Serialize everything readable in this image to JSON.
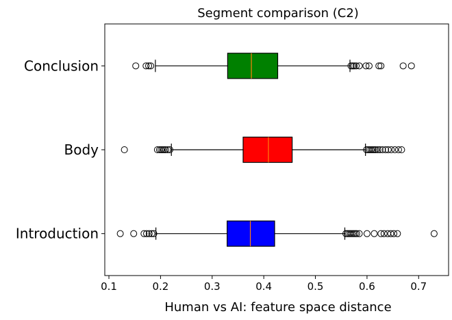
{
  "chart_data": {
    "type": "boxplot",
    "orientation": "horizontal",
    "title": "Segment comparison (C2)",
    "xlabel": "Human vs AI: feature space distance",
    "ylabel": "",
    "xlim": [
      0.092,
      0.758
    ],
    "x_ticks": [
      0.1,
      0.2,
      0.3,
      0.4,
      0.5,
      0.6,
      0.7
    ],
    "x_tick_labels": [
      "0.1",
      "0.2",
      "0.3",
      "0.4",
      "0.5",
      "0.6",
      "0.7"
    ],
    "grid": false,
    "legend": null,
    "median_color": "#ff7f0e",
    "categories": [
      "Introduction",
      "Body",
      "Conclusion"
    ],
    "boxes": [
      {
        "label": "Introduction",
        "color": "#0000ff",
        "whisker_low": 0.191,
        "q1": 0.329,
        "median": 0.374,
        "q3": 0.421,
        "whisker_high": 0.557,
        "outliers_low": [
          0.122,
          0.148,
          0.168,
          0.173,
          0.178,
          0.183,
          0.187
        ],
        "outliers_high": [
          0.559,
          0.562,
          0.565,
          0.568,
          0.571,
          0.574,
          0.577,
          0.58,
          0.585,
          0.6,
          0.614,
          0.627,
          0.633,
          0.64,
          0.646,
          0.652,
          0.659,
          0.73
        ]
      },
      {
        "label": "Body",
        "color": "#ff0000",
        "whisker_low": 0.221,
        "q1": 0.36,
        "median": 0.409,
        "q3": 0.455,
        "whisker_high": 0.597,
        "outliers_low": [
          0.13,
          0.194,
          0.198,
          0.201,
          0.204,
          0.207,
          0.21,
          0.214,
          0.218
        ],
        "outliers_high": [
          0.599,
          0.602,
          0.605,
          0.608,
          0.611,
          0.614,
          0.617,
          0.621,
          0.625,
          0.63,
          0.636,
          0.641,
          0.647,
          0.654,
          0.661,
          0.667
        ]
      },
      {
        "label": "Conclusion",
        "color": "#008000",
        "whisker_low": 0.19,
        "q1": 0.33,
        "median": 0.376,
        "q3": 0.427,
        "whisker_high": 0.567,
        "outliers_low": [
          0.152,
          0.172,
          0.177,
          0.181
        ],
        "outliers_high": [
          0.569,
          0.572,
          0.575,
          0.579,
          0.585,
          0.598,
          0.604,
          0.623,
          0.627,
          0.67,
          0.686
        ]
      }
    ]
  }
}
